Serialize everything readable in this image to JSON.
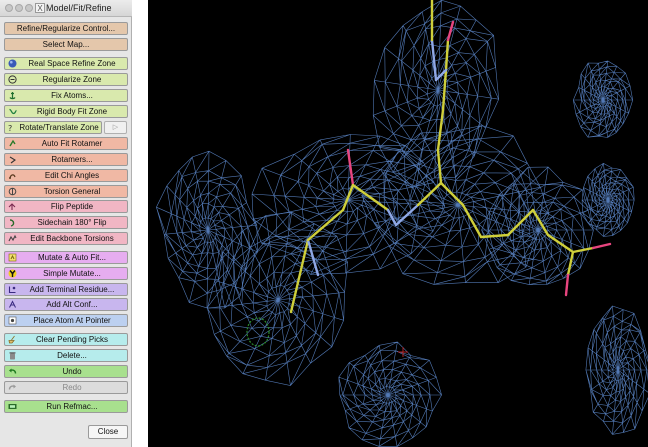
{
  "window": {
    "title": "Model/Fit/Refine",
    "buttons": [
      "close-traffic-light",
      "minimize-traffic-light",
      "zoom-traffic-light"
    ]
  },
  "toolbar": {
    "buttons": [
      {
        "id": "refine-regularize-control",
        "label": "Refine/Regularize Control...",
        "color": "#e4c7ab",
        "icon": null
      },
      {
        "id": "select-map",
        "label": "Select Map...",
        "color": "#e4c7ab",
        "icon": null
      },
      {
        "id": "real-space-refine-zone",
        "label": "Real Space Refine Zone",
        "color": "#d9e9ad",
        "icon": "blue-sphere-icon"
      },
      {
        "id": "regularize-zone",
        "label": "Regularize Zone",
        "color": "#d9e9ad",
        "icon": "regularize-icon"
      },
      {
        "id": "fix-atoms",
        "label": "Fix Atoms...",
        "color": "#d9e9ad",
        "icon": "anchor-icon"
      },
      {
        "id": "rigid-body-fit-zone",
        "label": "Rigid Body Fit Zone",
        "color": "#d9e9ad",
        "icon": "rigid-body-icon"
      },
      {
        "id": "rotate-translate-zone",
        "label": "Rotate/Translate Zone",
        "color": "#d9e9ad",
        "icon": "rotate-icon"
      },
      {
        "id": "auto-fit-rotamer",
        "label": "Auto Fit Rotamer",
        "color": "#f0b8a4",
        "icon": "auto-fit-icon"
      },
      {
        "id": "rotamers",
        "label": "Rotamers...",
        "color": "#f0b8a4",
        "icon": "rotamer-icon"
      },
      {
        "id": "edit-chi-angles",
        "label": "Edit Chi Angles",
        "color": "#f0b8a4",
        "icon": "chi-angle-icon"
      },
      {
        "id": "torsion-general",
        "label": "Torsion General",
        "color": "#f0b8a4",
        "icon": "torsion-icon"
      },
      {
        "id": "flip-peptide",
        "label": "Flip Peptide",
        "color": "#f1b6c4",
        "icon": "flip-peptide-icon"
      },
      {
        "id": "sidechain-flip",
        "label": "Sidechain 180° Flip",
        "color": "#f1b6c4",
        "icon": "sidechain-flip-icon"
      },
      {
        "id": "edit-backbone-torsions",
        "label": "Edit Backbone Torsions",
        "color": "#f1b6c4",
        "icon": "backbone-torsion-icon"
      },
      {
        "id": "mutate-auto-fit",
        "label": "Mutate & Auto Fit...",
        "color": "#e6adf0",
        "icon": "mutate-auto-fit-icon"
      },
      {
        "id": "simple-mutate",
        "label": "Simple Mutate...",
        "color": "#e6adf0",
        "icon": "radiation-icon"
      },
      {
        "id": "add-terminal-residue",
        "label": "Add Terminal Residue...",
        "color": "#c8b6ee",
        "icon": "terminal-residue-icon"
      },
      {
        "id": "add-alt-conf",
        "label": "Add Alt Conf...",
        "color": "#c8b6ee",
        "icon": "alt-conf-icon"
      },
      {
        "id": "place-atom-at-pointer",
        "label": "Place Atom At Pointer",
        "color": "#bcd0f0",
        "icon": "place-atom-icon"
      },
      {
        "id": "clear-pending-picks",
        "label": "Clear Pending Picks",
        "color": "#b6ecec",
        "icon": "broom-icon"
      },
      {
        "id": "delete",
        "label": "Delete...",
        "color": "#b6ecec",
        "icon": "trash-icon"
      },
      {
        "id": "undo",
        "label": "Undo",
        "color": "#a8e08e",
        "icon": "undo-arrow-icon"
      },
      {
        "id": "redo",
        "label": "Redo",
        "color": "#dcdcdc",
        "icon": "redo-arrow-icon",
        "disabled": true
      },
      {
        "id": "run-refmac",
        "label": "Run Refmac...",
        "color": "#a8e08e",
        "icon": "refmac-icon"
      }
    ],
    "rotate_translate_arrow": "▷",
    "close_label": "Close"
  },
  "viewport": {
    "background": "#000000",
    "density_mesh_color": "#5b86c8",
    "atom_colors": {
      "carbon": "#cfcf3a",
      "nitrogen": "#8fa8e6",
      "oxygen": "#e8457f",
      "density_blob": "#2c8c2c",
      "pointer_marker": "#b02020"
    }
  }
}
